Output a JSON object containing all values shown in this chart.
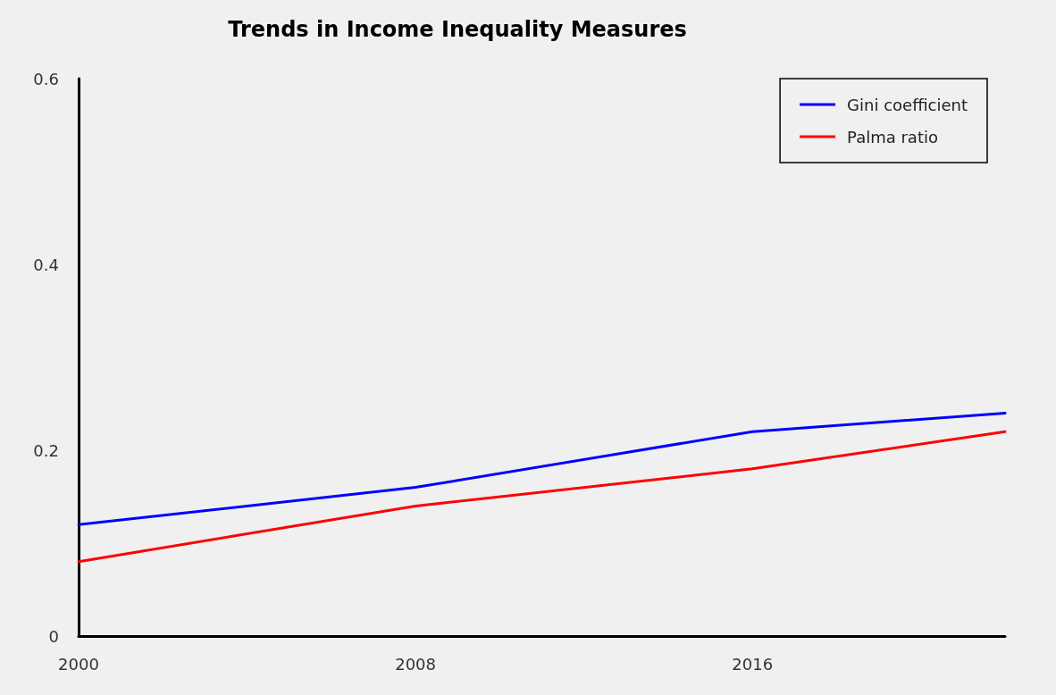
{
  "chart_data": {
    "type": "line",
    "title": "Trends in Income Inequality Measures",
    "x": [
      2000,
      2008,
      2016,
      2022
    ],
    "series": [
      {
        "name": "Gini coefficient",
        "color": "#0000ff",
        "values": [
          0.12,
          0.16,
          0.22,
          0.24
        ]
      },
      {
        "name": "Palma ratio",
        "color": "#ff0000",
        "values": [
          0.08,
          0.14,
          0.18,
          0.22
        ]
      }
    ],
    "xlim": [
      2000,
      2022
    ],
    "xticks": [
      2000,
      2008,
      2016
    ],
    "ylim": [
      0,
      0.6
    ],
    "yticks": [
      0,
      0.2,
      0.4,
      0.6
    ],
    "grid": false,
    "legend": "top right",
    "marker": "none",
    "line_style": "solid"
  }
}
